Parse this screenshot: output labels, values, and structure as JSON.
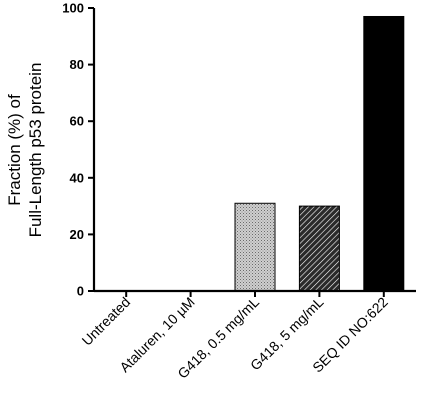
{
  "chart_data": {
    "type": "bar",
    "categories": [
      "Untreated",
      "Ataluren, 10 µM",
      "G418, 0.5 mg/mL",
      "G418, 5 mg/mL",
      "SEQ ID NO:622"
    ],
    "values": [
      0,
      0,
      31,
      30,
      97
    ],
    "bar_styles": [
      "solid-black",
      "solid-black",
      "dotted-light",
      "diagonal-hatch",
      "solid-black"
    ],
    "ylabel_lines": [
      "Fraction (%) of",
      "Full-Length p53 protein"
    ],
    "xlabel": "",
    "ylim": [
      0,
      100
    ],
    "yticks": [
      0,
      20,
      40,
      60,
      80,
      100
    ],
    "grid": false,
    "legend": "none"
  }
}
